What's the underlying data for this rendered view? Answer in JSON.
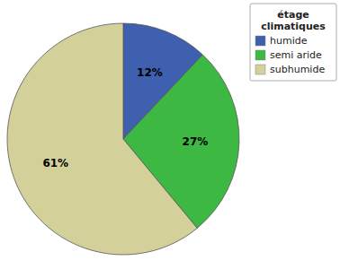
{
  "chart_data": {
    "type": "pie",
    "categories": [
      "humide",
      "semi aride",
      "subhumide"
    ],
    "values": [
      12,
      27,
      61
    ],
    "value_labels": [
      "12%",
      "27%",
      "61%"
    ],
    "colors": [
      "#3f5faf",
      "#3cb843",
      "#d4d09a"
    ],
    "legend_title": "étage\nclimatiques",
    "legend": "upper right",
    "data_labels": true
  }
}
